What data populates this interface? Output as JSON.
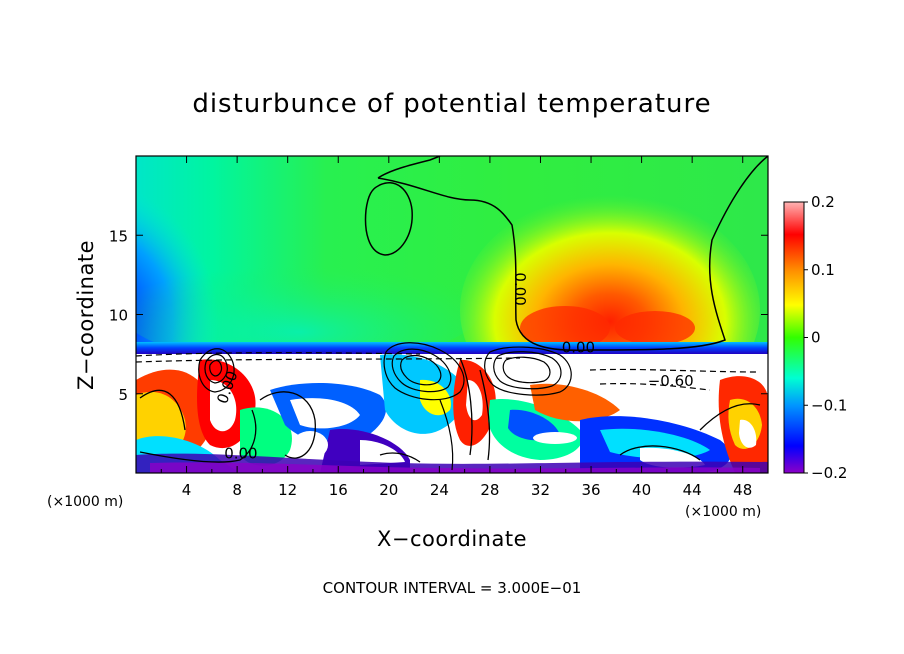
{
  "chart_data": {
    "type": "heatmap",
    "title": "disturbunce of potential temperature",
    "xlabel": "X−coordinate",
    "ylabel": "Z−coordinate",
    "x_unit": "(×1000 m)",
    "x_ticks": [
      4,
      8,
      12,
      16,
      20,
      24,
      28,
      32,
      36,
      40,
      44,
      48
    ],
    "y_ticks": [
      5,
      10,
      15
    ],
    "xlim": [
      0,
      50
    ],
    "ylim": [
      0,
      20
    ],
    "colorbar": {
      "min": -0.2,
      "max": 0.2,
      "tick_values": [
        0.2,
        0.1,
        0,
        -0.1,
        -0.2
      ],
      "tick_labels": [
        "0.2",
        "0.1",
        "0",
        "−0.1",
        "−0.2"
      ],
      "colors": [
        "#8b00c8",
        "#3a00b4",
        "#0000ff",
        "#0050ff",
        "#0096ff",
        "#00d2ff",
        "#00ffd2",
        "#00ff96",
        "#00ff50",
        "#32ff00",
        "#96ff00",
        "#d2ff00",
        "#ffff00",
        "#ffd200",
        "#ffa000",
        "#ff6400",
        "#ff2800",
        "#ff0000",
        "#ff6e6e",
        "#ffb4b4"
      ]
    },
    "contour_labels": [
      {
        "text": "0.00",
        "x": 30.0,
        "z": 11.6,
        "rotate": 90
      },
      {
        "text": "−0.60",
        "x": 42.3,
        "z": 5.5,
        "rotate": 0
      },
      {
        "text": "0.00",
        "x": 8.3,
        "z": 0.9,
        "rotate": 0
      },
      {
        "text": "0.00",
        "x": 35.0,
        "z": 7.6,
        "rotate": 0
      },
      {
        "text": "0.00",
        "x": 7.6,
        "z": 5.3,
        "rotate": -70
      }
    ],
    "contour_interval_note": "CONTOUR INTERVAL = 3.000E−01"
  }
}
